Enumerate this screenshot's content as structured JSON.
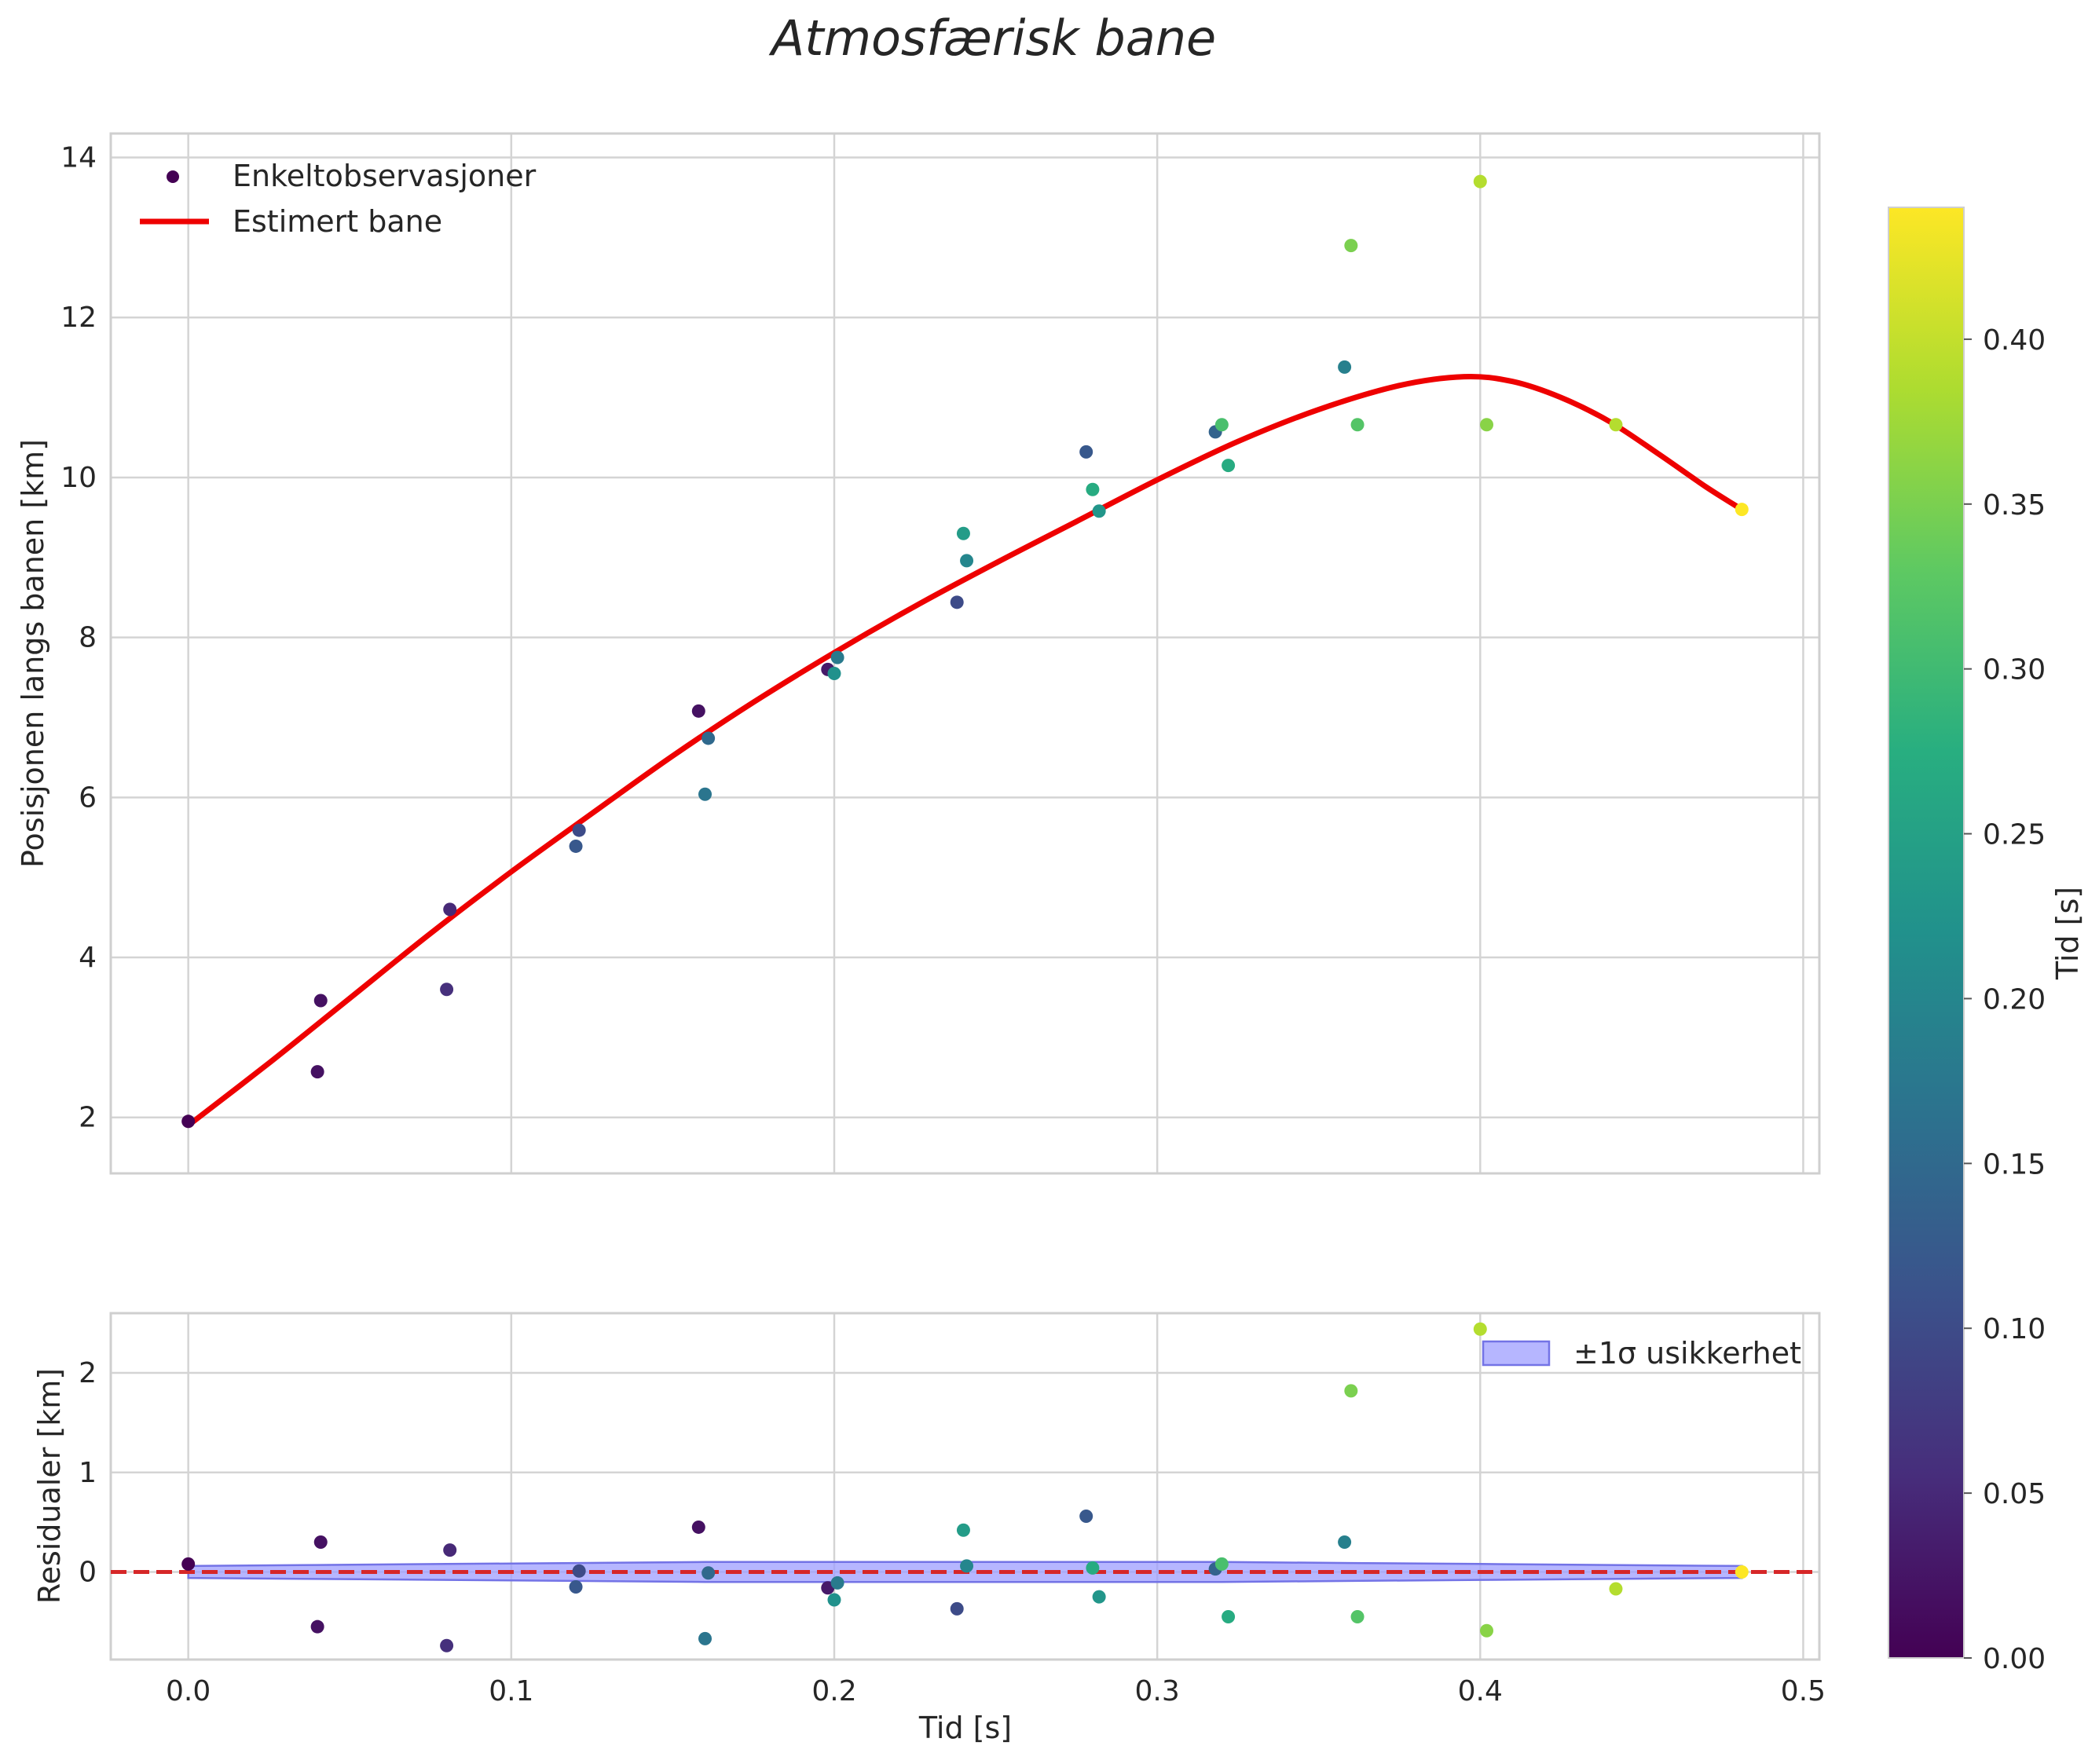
{
  "chart_data": {
    "type": "scatter",
    "title": "Atmosfærisk bane",
    "colors": {
      "fit_line": "#ee0000",
      "zero_line": "#d62728",
      "uncertainty_fill": "#9d9dff",
      "uncertainty_edge": "#7373e6",
      "grid": "#d4d4d4",
      "frame": "#cfcfcf"
    },
    "top": {
      "ylabel": "Posisjonen langs banen [km]",
      "ylim": [
        1.3,
        14.3
      ],
      "yticks": [
        "2",
        "4",
        "6",
        "8",
        "10",
        "12",
        "14"
      ],
      "legend": {
        "observations": "Enkeltobservasjoner",
        "fit": "Estimert bane"
      },
      "observations": [
        {
          "t": 0.0,
          "pos": 1.95,
          "c": 0.0
        },
        {
          "t": 0.04,
          "pos": 2.57,
          "c": 0.02
        },
        {
          "t": 0.041,
          "pos": 3.46,
          "c": 0.02
        },
        {
          "t": 0.08,
          "pos": 3.6,
          "c": 0.06
        },
        {
          "t": 0.081,
          "pos": 4.6,
          "c": 0.05
        },
        {
          "t": 0.12,
          "pos": 5.39,
          "c": 0.12
        },
        {
          "t": 0.121,
          "pos": 5.59,
          "c": 0.1
        },
        {
          "t": 0.158,
          "pos": 7.08,
          "c": 0.02
        },
        {
          "t": 0.16,
          "pos": 6.04,
          "c": 0.17
        },
        {
          "t": 0.161,
          "pos": 6.74,
          "c": 0.15
        },
        {
          "t": 0.198,
          "pos": 7.6,
          "c": 0.03
        },
        {
          "t": 0.2,
          "pos": 7.55,
          "c": 0.22
        },
        {
          "t": 0.201,
          "pos": 7.75,
          "c": 0.18
        },
        {
          "t": 0.238,
          "pos": 8.44,
          "c": 0.1
        },
        {
          "t": 0.24,
          "pos": 9.3,
          "c": 0.24
        },
        {
          "t": 0.241,
          "pos": 8.96,
          "c": 0.2
        },
        {
          "t": 0.278,
          "pos": 10.32,
          "c": 0.12
        },
        {
          "t": 0.28,
          "pos": 9.85,
          "c": 0.27
        },
        {
          "t": 0.282,
          "pos": 9.58,
          "c": 0.23
        },
        {
          "t": 0.318,
          "pos": 10.57,
          "c": 0.14
        },
        {
          "t": 0.32,
          "pos": 10.66,
          "c": 0.31
        },
        {
          "t": 0.322,
          "pos": 10.15,
          "c": 0.27
        },
        {
          "t": 0.358,
          "pos": 11.38,
          "c": 0.19
        },
        {
          "t": 0.36,
          "pos": 12.9,
          "c": 0.35
        },
        {
          "t": 0.362,
          "pos": 10.66,
          "c": 0.32
        },
        {
          "t": 0.4,
          "pos": 13.7,
          "c": 0.39
        },
        {
          "t": 0.402,
          "pos": 10.66,
          "c": 0.36
        },
        {
          "t": 0.442,
          "pos": 10.66,
          "c": 0.39
        },
        {
          "t": 0.481,
          "pos": 9.6,
          "c": 0.44
        }
      ],
      "fit_curve": {
        "t": [
          0.0,
          0.025,
          0.05,
          0.075,
          0.1,
          0.125,
          0.15,
          0.175,
          0.2,
          0.225,
          0.25,
          0.275,
          0.3,
          0.325,
          0.35,
          0.375,
          0.395,
          0.41,
          0.425,
          0.44,
          0.455,
          0.47,
          0.481
        ],
        "pos": [
          1.9,
          2.68,
          3.49,
          4.3,
          5.07,
          5.8,
          6.52,
          7.19,
          7.81,
          8.39,
          8.93,
          9.45,
          9.97,
          10.45,
          10.85,
          11.15,
          11.26,
          11.2,
          11.0,
          10.7,
          10.3,
          9.88,
          9.6
        ]
      }
    },
    "bottom": {
      "xlabel": "Tid [s]",
      "ylabel": "Residualer [km]",
      "xlim": [
        -0.024,
        0.505
      ],
      "ylim": [
        -0.88,
        2.6
      ],
      "xticks": [
        "0.0",
        "0.1",
        "0.2",
        "0.3",
        "0.4",
        "0.5"
      ],
      "yticks": [
        "0",
        "1",
        "2"
      ],
      "legend": {
        "band": "±1σ usikkerhet"
      },
      "band": {
        "t": [
          0.0,
          0.04,
          0.08,
          0.12,
          0.16,
          0.2,
          0.24,
          0.28,
          0.32,
          0.36,
          0.4,
          0.44,
          0.481
        ],
        "sigma": [
          0.06,
          0.07,
          0.08,
          0.09,
          0.1,
          0.1,
          0.1,
          0.1,
          0.1,
          0.09,
          0.08,
          0.07,
          0.06
        ]
      },
      "residuals": [
        {
          "t": 0.0,
          "r": 0.08,
          "c": 0.0
        },
        {
          "t": 0.04,
          "r": -0.55,
          "c": 0.02
        },
        {
          "t": 0.041,
          "r": 0.3,
          "c": 0.02
        },
        {
          "t": 0.08,
          "r": -0.74,
          "c": 0.06
        },
        {
          "t": 0.081,
          "r": 0.22,
          "c": 0.05
        },
        {
          "t": 0.12,
          "r": -0.15,
          "c": 0.12
        },
        {
          "t": 0.121,
          "r": 0.01,
          "c": 0.1
        },
        {
          "t": 0.158,
          "r": 0.45,
          "c": 0.02
        },
        {
          "t": 0.16,
          "r": -0.67,
          "c": 0.17
        },
        {
          "t": 0.161,
          "r": -0.01,
          "c": 0.15
        },
        {
          "t": 0.198,
          "r": -0.16,
          "c": 0.03
        },
        {
          "t": 0.2,
          "r": -0.28,
          "c": 0.22
        },
        {
          "t": 0.201,
          "r": -0.11,
          "c": 0.18
        },
        {
          "t": 0.238,
          "r": -0.37,
          "c": 0.1
        },
        {
          "t": 0.24,
          "r": 0.42,
          "c": 0.24
        },
        {
          "t": 0.241,
          "r": 0.06,
          "c": 0.2
        },
        {
          "t": 0.278,
          "r": 0.56,
          "c": 0.12
        },
        {
          "t": 0.28,
          "r": 0.04,
          "c": 0.27
        },
        {
          "t": 0.282,
          "r": -0.25,
          "c": 0.23
        },
        {
          "t": 0.318,
          "r": 0.03,
          "c": 0.14
        },
        {
          "t": 0.32,
          "r": 0.08,
          "c": 0.31
        },
        {
          "t": 0.322,
          "r": -0.45,
          "c": 0.27
        },
        {
          "t": 0.358,
          "r": 0.3,
          "c": 0.19
        },
        {
          "t": 0.36,
          "r": 1.82,
          "c": 0.35
        },
        {
          "t": 0.362,
          "r": -0.45,
          "c": 0.32
        },
        {
          "t": 0.4,
          "r": 2.44,
          "c": 0.39
        },
        {
          "t": 0.402,
          "r": -0.59,
          "c": 0.36
        },
        {
          "t": 0.442,
          "r": -0.17,
          "c": 0.39
        },
        {
          "t": 0.481,
          "r": 0.0,
          "c": 0.44
        }
      ]
    },
    "colorbar": {
      "label": "Tid [s]",
      "colormap": "viridis",
      "range": [
        0.0,
        0.44
      ],
      "ticks": [
        "0.00",
        "0.05",
        "0.10",
        "0.15",
        "0.20",
        "0.25",
        "0.30",
        "0.35",
        "0.40"
      ]
    }
  }
}
